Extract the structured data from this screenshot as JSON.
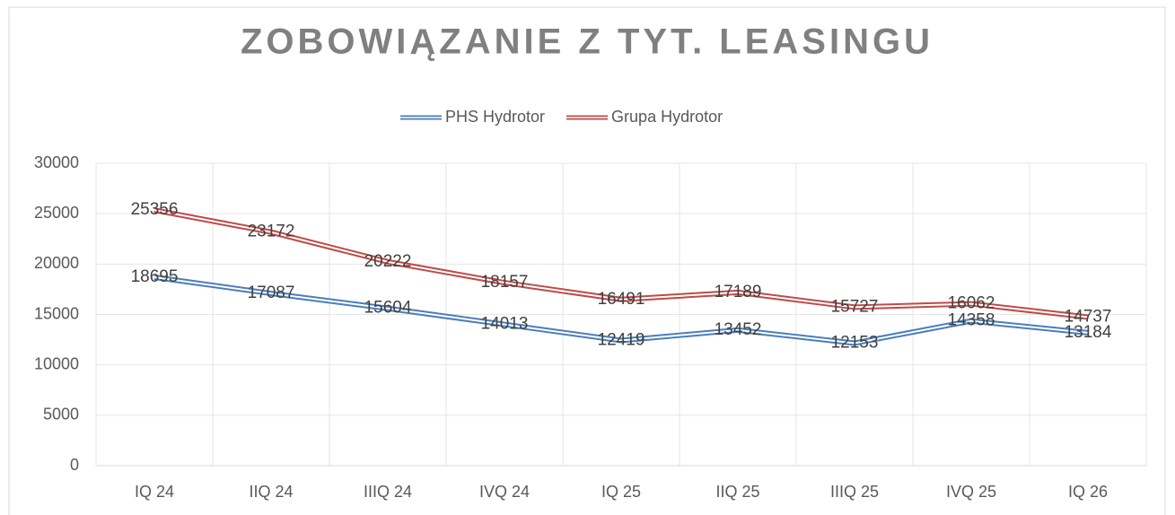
{
  "chart_data": {
    "type": "line",
    "title": "ZOBOWIĄZANIE Z TYT. LEASINGU",
    "categories": [
      "IQ 24",
      "IIQ 24",
      "IIIQ 24",
      "IVQ 24",
      "IQ 25",
      "IIQ 25",
      "IIIQ 25",
      "IVQ 25",
      "IQ 26"
    ],
    "series": [
      {
        "name": "PHS Hydrotor",
        "color": "#4a7ebb",
        "values": [
          18695,
          17087,
          15604,
          14013,
          12419,
          13452,
          12153,
          14358,
          13184
        ]
      },
      {
        "name": "Grupa Hydrotor",
        "color": "#be4b48",
        "values": [
          25356,
          23172,
          20222,
          18157,
          16491,
          17189,
          15727,
          16062,
          14737
        ]
      }
    ],
    "ylim": [
      0,
      30000
    ],
    "yticks": [
      0,
      5000,
      10000,
      15000,
      20000,
      25000,
      30000
    ],
    "grid": true,
    "legend": "top"
  }
}
